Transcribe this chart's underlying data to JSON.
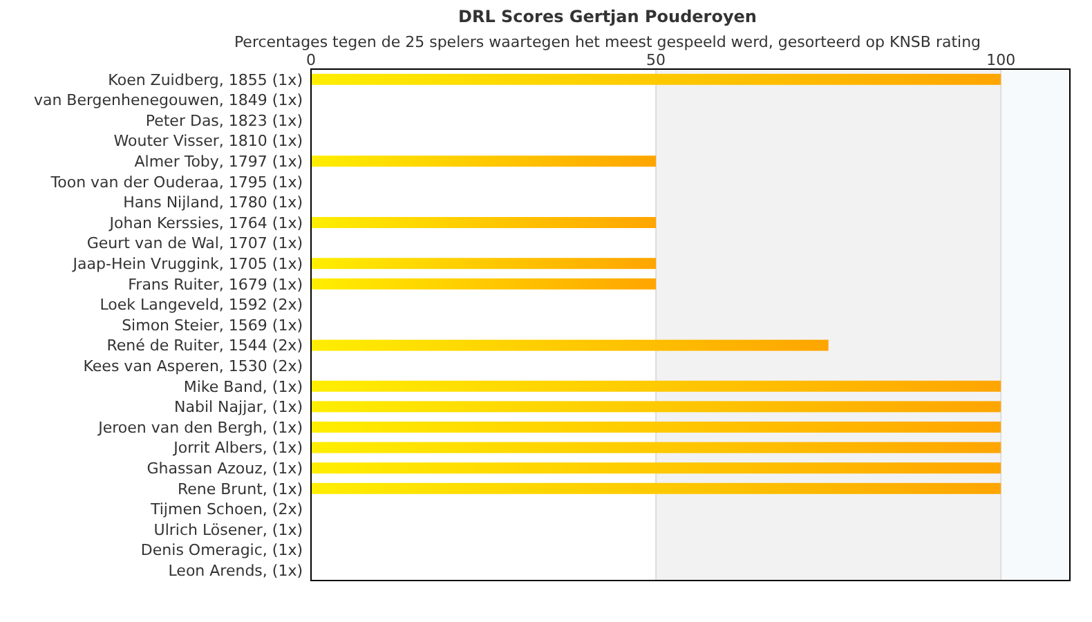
{
  "chart_data": {
    "type": "bar",
    "orientation": "horizontal",
    "title": "DRL Scores Gertjan Pouderoyen",
    "subtitle": "Percentages tegen de 25 spelers waartegen het meest gespeeld werd, gesorteerd op KNSB rating",
    "categories": [
      "Koen Zuidberg, 1855 (1x)",
      "van Bergenhenegouwen, 1849 (1x)",
      "Peter Das, 1823 (1x)",
      "Wouter Visser, 1810 (1x)",
      "Almer Toby, 1797 (1x)",
      "Toon van der Ouderaa, 1795 (1x)",
      "Hans Nijland, 1780 (1x)",
      "Johan Kerssies, 1764 (1x)",
      "Geurt van de Wal, 1707 (1x)",
      "Jaap-Hein Vruggink, 1705 (1x)",
      "Frans Ruiter, 1679 (1x)",
      "Loek Langeveld, 1592 (2x)",
      "Simon Steier, 1569 (1x)",
      "René de Ruiter, 1544 (2x)",
      "Kees van Asperen, 1530 (2x)",
      "Mike Band,  (1x)",
      "Nabil Najjar,  (1x)",
      "Jeroen van den Bergh,  (1x)",
      "Jorrit Albers,  (1x)",
      "Ghassan Azouz,  (1x)",
      "Rene Brunt,  (1x)",
      "Tijmen Schoen,  (2x)",
      "Ulrich Lösener,  (1x)",
      "Denis Omeragic,  (1x)",
      "Leon Arends,  (1x)"
    ],
    "values": [
      100,
      0,
      0,
      0,
      50,
      0,
      0,
      50,
      0,
      50,
      50,
      0,
      0,
      75,
      0,
      100,
      100,
      100,
      100,
      100,
      100,
      0,
      0,
      0,
      0
    ],
    "color": "#ffa500",
    "xlim": [
      0,
      110
    ],
    "xticks": [
      0,
      50,
      100
    ],
    "grid": "x",
    "bands": [
      {
        "axis": "x",
        "from": 50,
        "to": 100,
        "color": "#f2f2f2"
      },
      {
        "axis": "x",
        "from": 100,
        "to": 110,
        "color": "#f7fafc"
      }
    ]
  }
}
